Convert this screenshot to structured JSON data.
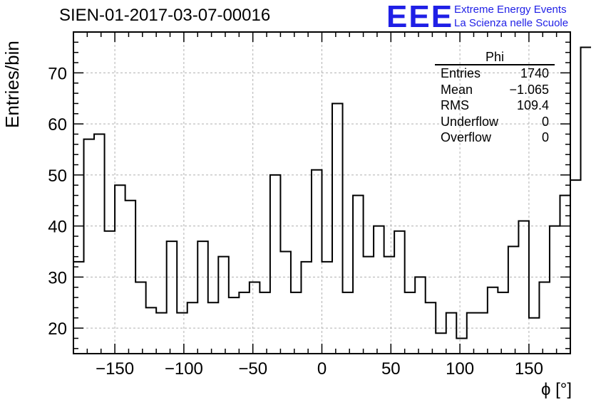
{
  "title": "SIEN-01-2017-03-07-00016",
  "logo": {
    "mark": "EEE",
    "line1": "Extreme Energy Events",
    "line2": "La Scienza nelle Scuole",
    "color": "#1f1fe6"
  },
  "stats": {
    "name": "Phi",
    "rows": [
      {
        "label": "Entries",
        "value": "1740"
      },
      {
        "label": "Mean",
        "value": "−1.065"
      },
      {
        "label": "RMS",
        "value": "109.4"
      },
      {
        "label": "Underflow",
        "value": "0"
      },
      {
        "label": "Overflow",
        "value": "0"
      }
    ]
  },
  "chart_data": {
    "type": "bar",
    "style": "step-histogram",
    "xlabel": "ϕ [°]",
    "ylabel": "Entries/bin",
    "xlim": [
      -180,
      180
    ],
    "ylim": [
      15,
      78
    ],
    "grid": true,
    "bin_width": 7.5,
    "bin_edges_start": -180,
    "values": [
      33,
      57,
      58,
      39,
      48,
      45,
      29,
      24,
      23,
      37,
      23,
      25,
      37,
      25,
      34,
      26,
      27,
      29,
      27,
      50,
      35,
      27,
      33,
      51,
      33,
      64,
      27,
      46,
      34,
      40,
      34,
      39,
      27,
      30,
      25,
      19,
      23,
      18,
      23,
      23,
      28,
      27,
      36,
      41,
      22,
      29,
      40,
      46,
      49,
      75
    ],
    "x_ticks": [
      -150,
      -100,
      -50,
      0,
      50,
      100,
      150
    ],
    "x_tick_labels": [
      "−150",
      "−100",
      "−50",
      "0",
      "50",
      "100",
      "150"
    ],
    "y_ticks": [
      20,
      30,
      40,
      50,
      60,
      70
    ],
    "y_tick_labels": [
      "20",
      "30",
      "40",
      "50",
      "60",
      "70"
    ]
  }
}
